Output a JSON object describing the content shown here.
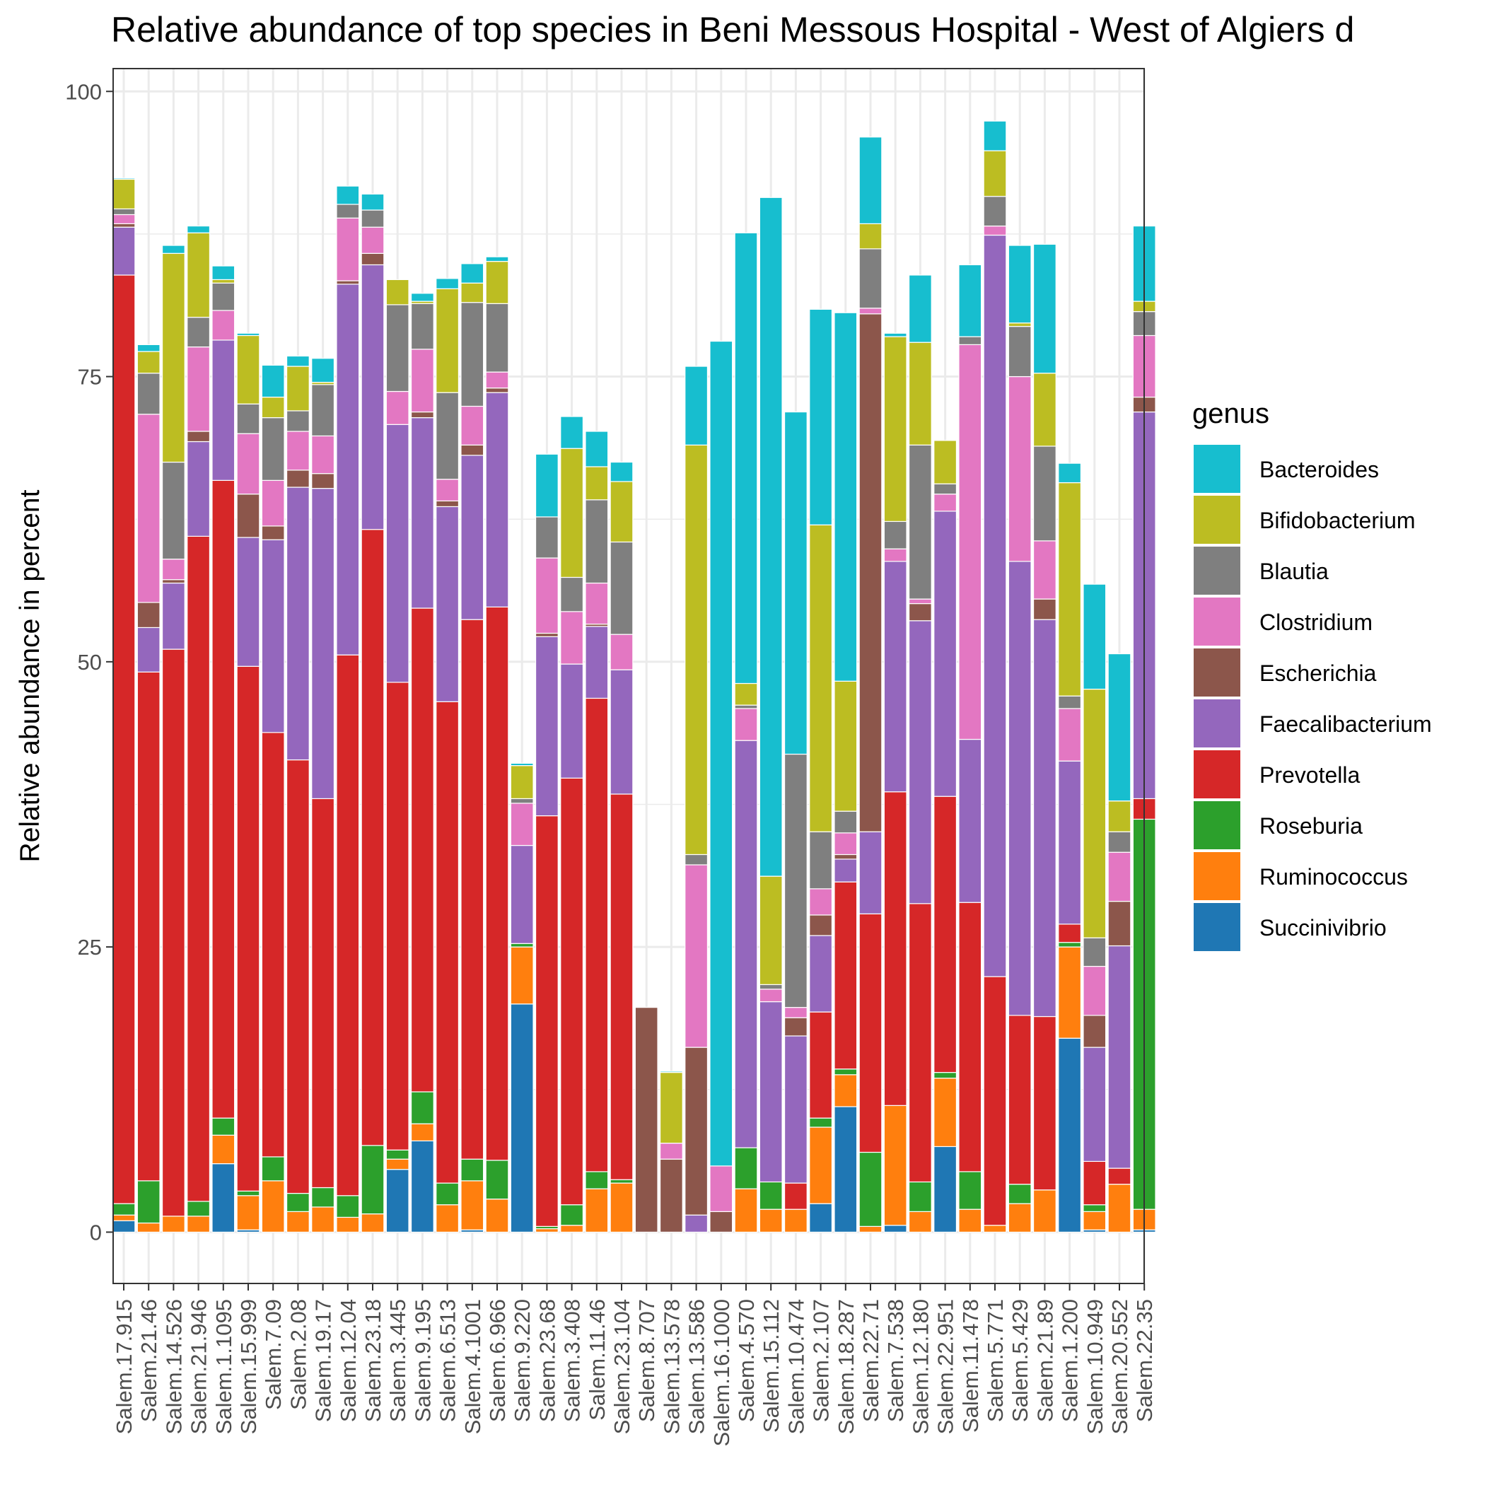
{
  "chart_data": {
    "type": "bar",
    "stacked": true,
    "title": "Relative abundance of top species in Beni Messous Hospital - West of Algiers d",
    "ylabel": "Relative abundance in percent",
    "xlabel": "",
    "ylim": [
      -4.5,
      102
    ],
    "yticks": [
      0,
      25,
      50,
      75,
      100
    ],
    "grid": true,
    "legend_title": "genus",
    "legend_position": "right",
    "categories": [
      "Salem.17.915",
      "Salem.21.46",
      "Salem.14.526",
      "Salem.21.946",
      "Salem.1.1095",
      "Salem.15.999",
      "Salem.7.09",
      "Salem.2.08",
      "Salem.19.17",
      "Salem.12.04",
      "Salem.23.18",
      "Salem.3.445",
      "Salem.9.195",
      "Salem.6.513",
      "Salem.4.1001",
      "Salem.6.966",
      "Salem.9.220",
      "Salem.23.68",
      "Salem.3.408",
      "Salem.11.46",
      "Salem.23.104",
      "Salem.8.707",
      "Salem.13.578",
      "Salem.13.586",
      "Salem.16.1000",
      "Salem.4.570",
      "Salem.15.112",
      "Salem.10.474",
      "Salem.2.107",
      "Salem.18.287",
      "Salem.22.71",
      "Salem.7.538",
      "Salem.12.180",
      "Salem.22.951",
      "Salem.11.478",
      "Salem.5.771",
      "Salem.5.429",
      "Salem.21.89",
      "Salem.1.200",
      "Salem.10.949",
      "Salem.20.552",
      "Salem.22.35"
    ],
    "series": [
      {
        "name": "Succinivibrio",
        "color": "#1f77b4",
        "values": [
          1.0,
          0,
          0,
          0,
          6.0,
          0.2,
          0,
          0,
          0,
          0,
          0,
          5.5,
          8.0,
          0,
          0.2,
          0,
          20.0,
          0,
          0,
          0,
          0,
          0,
          0,
          0,
          0,
          0,
          0,
          0,
          2.5,
          11.0,
          0,
          0.6,
          0,
          7.5,
          0,
          0,
          0,
          0,
          17.0,
          0.2,
          0,
          0.2
        ]
      },
      {
        "name": "Ruminococcus",
        "color": "#ff7f0e",
        "values": [
          0.5,
          0.8,
          1.4,
          1.4,
          2.5,
          3.0,
          4.5,
          1.8,
          2.2,
          1.3,
          1.6,
          0.9,
          1.5,
          2.4,
          4.3,
          2.9,
          5.0,
          0.3,
          0.6,
          3.8,
          4.3,
          0,
          0,
          0,
          0,
          3.8,
          2.0,
          2.0,
          6.7,
          2.8,
          0.5,
          10.5,
          1.8,
          6.0,
          2.0,
          0.6,
          2.5,
          3.7,
          8.0,
          1.6,
          4.2,
          1.8
        ]
      },
      {
        "name": "Roseburia",
        "color": "#2ca02c",
        "values": [
          1.0,
          3.7,
          0,
          1.3,
          1.5,
          0.4,
          2.1,
          1.6,
          1.7,
          1.9,
          6.0,
          0.8,
          2.8,
          1.9,
          1.9,
          3.4,
          0.3,
          0.2,
          1.8,
          1.5,
          0.3,
          0,
          0,
          0,
          0,
          3.6,
          2.4,
          0,
          0.8,
          0.5,
          6.5,
          0,
          2.6,
          0.5,
          3.3,
          0,
          1.7,
          0,
          0.4,
          0.6,
          0,
          34.2
        ]
      },
      {
        "name": "Prevotella",
        "color": "#d62728",
        "values": [
          81.4,
          44.6,
          49.7,
          58.3,
          55.9,
          46.0,
          37.2,
          38.0,
          34.1,
          47.4,
          54.0,
          41.0,
          42.4,
          42.2,
          47.3,
          48.5,
          0,
          36.0,
          37.4,
          41.5,
          33.8,
          0,
          0,
          0,
          0,
          0,
          0,
          2.3,
          9.3,
          16.4,
          20.9,
          27.5,
          24.4,
          24.2,
          23.6,
          21.8,
          14.8,
          15.2,
          1.6,
          3.8,
          1.4,
          1.8
        ]
      },
      {
        "name": "Faecalibacterium",
        "color": "#9467bd",
        "values": [
          4.2,
          3.9,
          5.8,
          8.3,
          12.3,
          11.3,
          16.9,
          23.9,
          27.2,
          32.5,
          23.2,
          22.6,
          16.7,
          17.1,
          14.4,
          18.8,
          8.6,
          15.7,
          10.0,
          6.3,
          10.9,
          0,
          0,
          1.5,
          0,
          35.7,
          15.8,
          12.9,
          6.7,
          2.0,
          7.2,
          20.2,
          24.8,
          25.0,
          14.3,
          65.0,
          39.8,
          34.8,
          14.3,
          10.0,
          19.5,
          33.9
        ]
      },
      {
        "name": "Escherichia",
        "color": "#8c564b",
        "values": [
          0.3,
          2.2,
          0.3,
          0.9,
          0,
          3.8,
          1.2,
          1.5,
          1.3,
          0.3,
          1.0,
          0,
          0.5,
          0.5,
          0.9,
          0.4,
          0,
          0.3,
          0,
          0.2,
          0,
          19.7,
          6.4,
          14.7,
          1.8,
          0,
          0,
          1.6,
          1.8,
          0.4,
          45.4,
          0,
          1.5,
          0,
          0,
          0,
          0,
          1.8,
          0,
          2.8,
          3.9,
          1.3
        ]
      },
      {
        "name": "Clostridium",
        "color": "#e377c2",
        "values": [
          0.8,
          16.5,
          1.8,
          7.4,
          2.6,
          5.3,
          4.0,
          3.4,
          3.3,
          5.5,
          2.3,
          2.9,
          5.5,
          1.9,
          3.4,
          1.4,
          3.7,
          6.6,
          4.6,
          3.6,
          3.1,
          0,
          1.4,
          16.0,
          4.0,
          2.8,
          1.1,
          0.9,
          2.3,
          1.9,
          0.5,
          1.1,
          0.4,
          1.5,
          34.6,
          0.8,
          16.2,
          5.1,
          4.6,
          4.3,
          4.3,
          5.4
        ]
      },
      {
        "name": "Blautia",
        "color": "#7f7f7f",
        "values": [
          0.5,
          3.6,
          8.5,
          2.6,
          2.4,
          2.6,
          5.5,
          1.8,
          4.5,
          1.2,
          1.5,
          7.6,
          4.0,
          7.6,
          9.1,
          6.0,
          0.4,
          3.6,
          3.0,
          7.3,
          8.1,
          0,
          0,
          0.9,
          0,
          0.3,
          0.4,
          22.2,
          5.0,
          1.9,
          5.2,
          2.4,
          13.5,
          0.9,
          0.7,
          2.6,
          4.4,
          8.3,
          1.1,
          2.5,
          1.8,
          2.1
        ]
      },
      {
        "name": "Bifidobacterium",
        "color": "#bcbd22",
        "values": [
          2.6,
          1.9,
          18.3,
          7.4,
          0.3,
          6.0,
          1.8,
          3.9,
          0.2,
          0,
          0,
          2.2,
          0.2,
          9.1,
          1.7,
          3.7,
          2.9,
          0,
          11.3,
          2.9,
          5.3,
          0,
          6.2,
          35.9,
          0,
          1.9,
          9.5,
          0,
          26.9,
          11.4,
          2.2,
          16.2,
          9.0,
          3.8,
          0,
          4.0,
          0.3,
          6.4,
          18.7,
          21.8,
          2.7,
          0.9
        ]
      },
      {
        "name": "Bacteroides",
        "color": "#17becf",
        "values": [
          0.1,
          0.6,
          0.7,
          0.6,
          1.2,
          0.2,
          2.8,
          0.9,
          2.1,
          1.6,
          1.4,
          0,
          0.7,
          0.9,
          1.7,
          0.4,
          0.2,
          5.5,
          2.8,
          3.1,
          1.7,
          0,
          0.1,
          6.9,
          72.3,
          39.5,
          59.5,
          30.0,
          18.9,
          32.3,
          7.6,
          0.3,
          5.9,
          0,
          6.3,
          2.6,
          6.8,
          11.3,
          1.7,
          9.2,
          12.9,
          6.6
        ]
      }
    ]
  }
}
